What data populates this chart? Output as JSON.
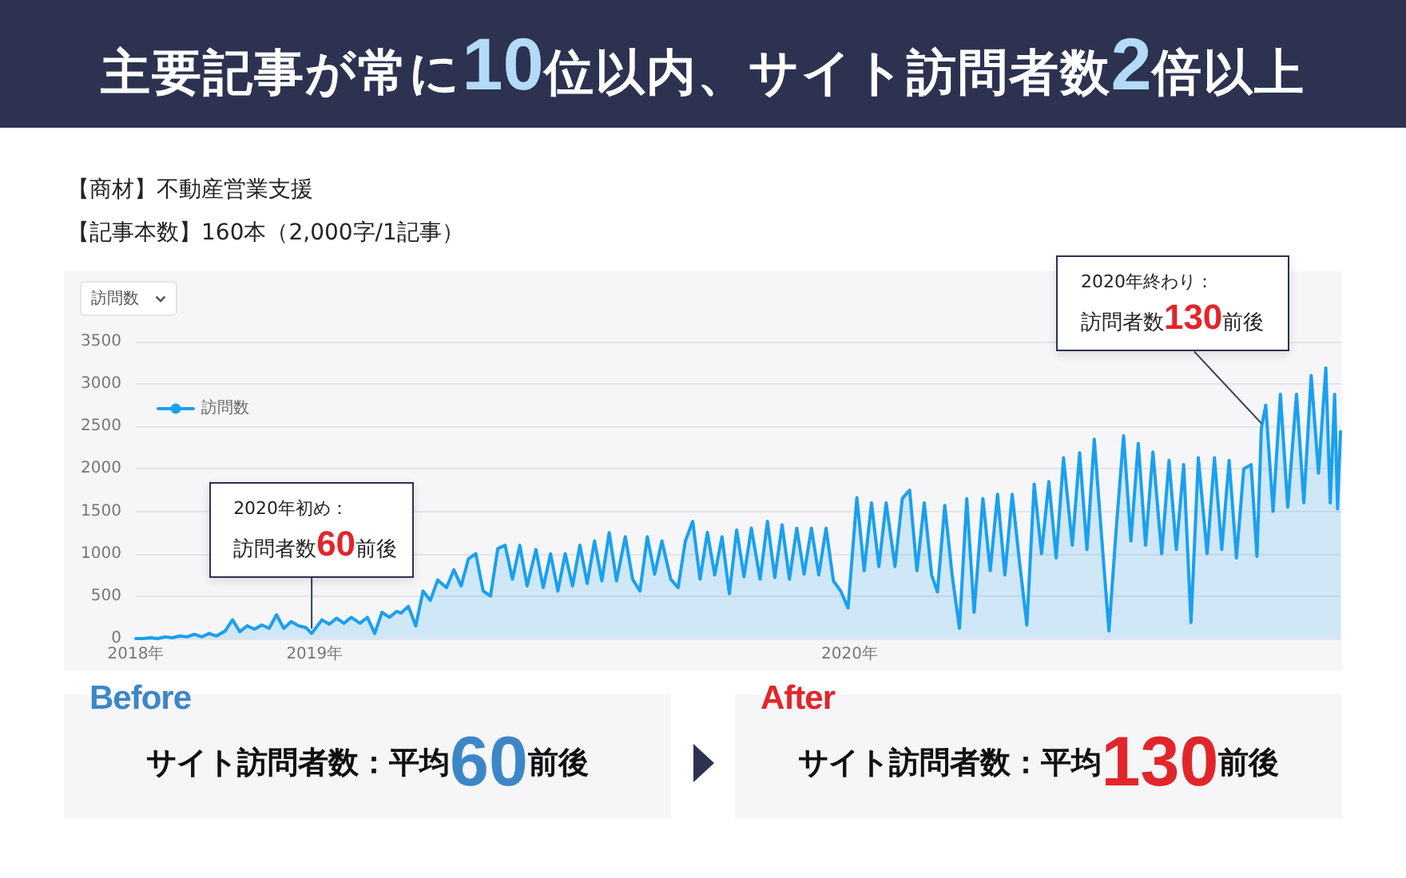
{
  "chart_data": {
    "type": "area",
    "title": "主要記事が常に10位以内、サイト訪問者数2倍以上",
    "subtitle": "【商材】不動産営業支援",
    "ylabel": "訪問数",
    "x": [
      "2018-09-01",
      "2018-09-06",
      "2018-09-11",
      "2018-09-16",
      "2018-09-21",
      "2018-09-26",
      "2018-10-01",
      "2018-10-06",
      "2018-10-11",
      "2018-10-16",
      "2018-10-21",
      "2018-10-26",
      "2018-11-01",
      "2018-11-06",
      "2018-11-11",
      "2018-11-16",
      "2018-11-21",
      "2018-11-26",
      "2018-12-01",
      "2018-12-06",
      "2018-12-11",
      "2018-12-16",
      "2018-12-21",
      "2018-12-26",
      "2018-12-30",
      "2019-01-06",
      "2019-01-11",
      "2019-01-16",
      "2019-01-21",
      "2019-01-26",
      "2019-02-01",
      "2019-02-06",
      "2019-02-11",
      "2019-02-16",
      "2019-02-21",
      "2019-02-26",
      "2019-03-01",
      "2019-03-06",
      "2019-03-11",
      "2019-03-16",
      "2019-03-21",
      "2019-03-26",
      "2019-04-01",
      "2019-04-06",
      "2019-04-11",
      "2019-04-16",
      "2019-04-21",
      "2019-04-26",
      "2019-05-01",
      "2019-05-06",
      "2019-05-11",
      "2019-05-16",
      "2019-05-21",
      "2019-05-26",
      "2019-06-01",
      "2019-06-06",
      "2019-06-11",
      "2019-06-16",
      "2019-06-21",
      "2019-06-26",
      "2019-07-01",
      "2019-07-06",
      "2019-07-11",
      "2019-07-16",
      "2019-07-21",
      "2019-07-26",
      "2019-08-01",
      "2019-08-06",
      "2019-08-11",
      "2019-08-16",
      "2019-08-21",
      "2019-08-26",
      "2019-09-01",
      "2019-09-06",
      "2019-09-11",
      "2019-09-16",
      "2019-09-21",
      "2019-09-26",
      "2019-10-01",
      "2019-10-06",
      "2019-10-11",
      "2019-10-16",
      "2019-10-21",
      "2019-10-26",
      "2019-11-01",
      "2019-11-06",
      "2019-11-11",
      "2019-11-16",
      "2019-11-21",
      "2019-11-26",
      "2019-12-01",
      "2019-12-06",
      "2019-12-11",
      "2019-12-16",
      "2019-12-21",
      "2019-12-26",
      "2019-12-31",
      "2020-01-06",
      "2020-01-11",
      "2020-01-16",
      "2020-01-21",
      "2020-01-26",
      "2020-02-01",
      "2020-02-06",
      "2020-02-11",
      "2020-02-16",
      "2020-02-21",
      "2020-02-26",
      "2020-03-01",
      "2020-03-06",
      "2020-03-11",
      "2020-03-16",
      "2020-03-21",
      "2020-03-26",
      "2020-04-01",
      "2020-04-06",
      "2020-04-11",
      "2020-04-16",
      "2020-04-21",
      "2020-04-26",
      "2020-05-01",
      "2020-05-06",
      "2020-05-11",
      "2020-05-16",
      "2020-05-21",
      "2020-05-26",
      "2020-06-01",
      "2020-06-06",
      "2020-06-11",
      "2020-06-16",
      "2020-06-21",
      "2020-06-26",
      "2020-07-01",
      "2020-07-06",
      "2020-07-11",
      "2020-07-16",
      "2020-07-21",
      "2020-07-26",
      "2020-08-01",
      "2020-08-06",
      "2020-08-11",
      "2020-08-16",
      "2020-08-21",
      "2020-08-26",
      "2020-09-01",
      "2020-09-06",
      "2020-09-11",
      "2020-09-16",
      "2020-09-21",
      "2020-09-26",
      "2020-10-01",
      "2020-10-05",
      "2020-10-08",
      "2020-10-11",
      "2020-10-16",
      "2020-10-21",
      "2020-10-26",
      "2020-11-01",
      "2020-11-06",
      "2020-11-11",
      "2020-11-16",
      "2020-11-21",
      "2020-11-24",
      "2020-11-27",
      "2020-11-29",
      "2020-12-01"
    ],
    "series": [
      {
        "name": "訪問数",
        "color": "#1aa0ef",
        "values": [
          0,
          0,
          10,
          0,
          20,
          10,
          30,
          20,
          50,
          20,
          60,
          30,
          90,
          220,
          80,
          150,
          110,
          160,
          120,
          280,
          120,
          200,
          150,
          130,
          60,
          220,
          170,
          240,
          180,
          250,
          180,
          250,
          60,
          310,
          250,
          320,
          300,
          380,
          150,
          560,
          450,
          690,
          600,
          810,
          620,
          940,
          1000,
          560,
          500,
          1060,
          1100,
          700,
          1100,
          620,
          1050,
          600,
          1000,
          560,
          1000,
          620,
          1100,
          650,
          1150,
          680,
          1250,
          680,
          1200,
          700,
          560,
          1200,
          760,
          1150,
          700,
          600,
          1150,
          1380,
          700,
          1250,
          750,
          1200,
          530,
          1280,
          730,
          1300,
          700,
          1380,
          720,
          1340,
          700,
          1300,
          760,
          1300,
          750,
          1300,
          680,
          560,
          360,
          1660,
          800,
          1600,
          850,
          1600,
          850,
          1650,
          1750,
          800,
          1600,
          750,
          550,
          1570,
          750,
          120,
          1650,
          310,
          1650,
          800,
          1700,
          750,
          1700,
          900,
          160,
          1820,
          1000,
          1850,
          950,
          2130,
          1100,
          2190,
          1050,
          2350,
          1200,
          90,
          1300,
          2390,
          1150,
          2300,
          1100,
          2200,
          1000,
          2100,
          1050,
          2050,
          190,
          2130,
          1000,
          2130,
          1050,
          2100,
          950,
          2000,
          2050,
          970,
          2480,
          2750,
          1500,
          2880,
          1550,
          2880,
          1600,
          3100,
          1950,
          3190,
          1600,
          2880,
          1530,
          2440
        ]
      }
    ],
    "xlim": [
      "2018-09-01",
      "2020-12-01"
    ],
    "xticks": [
      {
        "value": "2018-09-01",
        "label": "2018年"
      },
      {
        "value": "2019-01-01",
        "label": "2019年"
      },
      {
        "value": "2020-01-01",
        "label": "2020年"
      }
    ],
    "ylim": [
      0,
      3500
    ],
    "yticks": [
      0,
      500,
      1000,
      1500,
      2000,
      2500,
      3000,
      3500
    ],
    "grid": "y",
    "legend": "top left",
    "marker": "none",
    "annotations": [
      "【記事本数】160本（2,000字/1記事）",
      {
        "text": "2020年初め：訪問者数60前後",
        "x": "2018-12-30",
        "y": 60
      },
      {
        "text": "2020年終わり：訪問者数130前後",
        "x": "2020-10-08",
        "y": 2480
      },
      "Before",
      "サイト訪問者数：平均60前後",
      "After",
      "サイト訪問者数：平均130前後"
    ]
  }
}
